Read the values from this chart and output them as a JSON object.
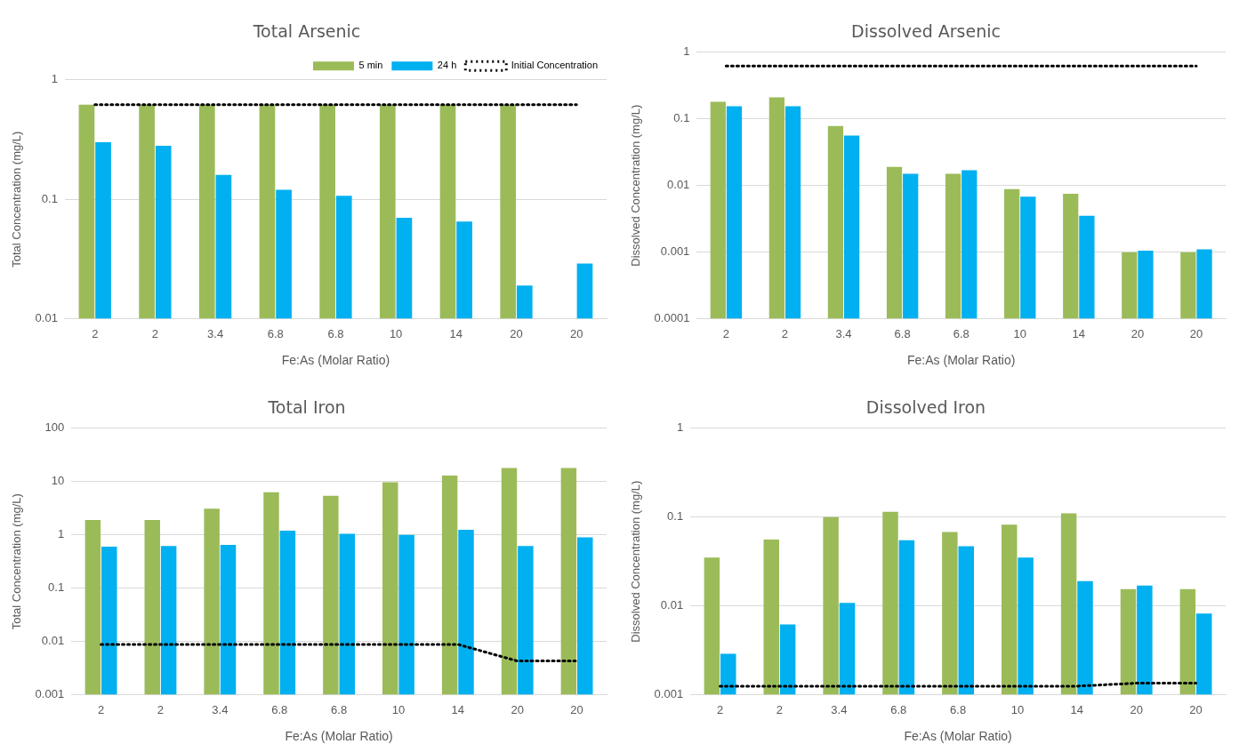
{
  "chart_data": [
    {
      "type": "bar",
      "title": "Total Arsenic",
      "xlabel": "Fe:As (Molar Ratio)",
      "ylabel": "Total Concentration (mg/L)",
      "categories": [
        "2",
        "2",
        "3.4",
        "6.8",
        "6.8",
        "10",
        "14",
        "20",
        "20"
      ],
      "log": "y",
      "ylim": [
        0.01,
        1
      ],
      "yticks": [
        0.01,
        0.1,
        1
      ],
      "grid": "y",
      "legend": "top right",
      "series": [
        {
          "name": "5 min",
          "color": "#9bbb59",
          "values": [
            0.62,
            0.62,
            0.62,
            0.62,
            0.62,
            0.62,
            0.62,
            0.62,
            null
          ]
        },
        {
          "name": "24 h",
          "color": "#00b0f0",
          "values": [
            0.3,
            0.28,
            0.16,
            0.12,
            0.107,
            0.07,
            0.065,
            0.019,
            0.029
          ]
        },
        {
          "name": "Initial Concentration",
          "type": "line",
          "color": "#000000",
          "line_style": "dotted",
          "values": [
            0.62,
            0.62,
            0.62,
            0.62,
            0.62,
            0.62,
            0.62,
            0.62,
            0.62
          ]
        }
      ]
    },
    {
      "type": "bar",
      "title": "Dissolved Arsenic",
      "xlabel": "Fe:As (Molar Ratio)",
      "ylabel": "Dissolved Concentration (mg/L)",
      "categories": [
        "2",
        "2",
        "3.4",
        "6.8",
        "6.8",
        "10",
        "14",
        "20",
        "20"
      ],
      "log": "y",
      "ylim": [
        0.0001,
        1
      ],
      "yticks": [
        0.0001,
        0.001,
        0.01,
        0.1,
        1
      ],
      "grid": "y",
      "series": [
        {
          "color": "#9bbb59",
          "values": [
            0.18,
            0.21,
            0.078,
            0.019,
            0.015,
            0.0088,
            0.0075,
            0.001,
            0.001
          ]
        },
        {
          "color": "#00b0f0",
          "values": [
            0.155,
            0.155,
            0.056,
            0.015,
            0.017,
            0.0068,
            0.0035,
            0.00105,
            0.0011
          ]
        },
        {
          "type": "line",
          "color": "#000000",
          "line_style": "dotted",
          "values": [
            0.62,
            0.62,
            0.62,
            0.62,
            0.62,
            0.62,
            0.62,
            0.62,
            0.62
          ]
        }
      ]
    },
    {
      "type": "bar",
      "title": "Total Iron",
      "xlabel": "Fe:As (Molar Ratio)",
      "ylabel": "Total Concentration (mg/L)",
      "categories": [
        "2",
        "2",
        "3.4",
        "6.8",
        "6.8",
        "10",
        "14",
        "20",
        "20"
      ],
      "log": "y",
      "ylim": [
        0.001,
        100
      ],
      "yticks": [
        0.001,
        0.01,
        0.1,
        1,
        10,
        100
      ],
      "grid": "y",
      "series": [
        {
          "color": "#9bbb59",
          "values": [
            1.9,
            1.9,
            3.1,
            6.3,
            5.4,
            9.7,
            13,
            18,
            18
          ]
        },
        {
          "color": "#00b0f0",
          "values": [
            0.6,
            0.62,
            0.65,
            1.2,
            1.05,
            1.0,
            1.25,
            0.62,
            0.9
          ]
        },
        {
          "type": "line",
          "color": "#000000",
          "line_style": "dotted",
          "values": [
            0.0088,
            0.0088,
            0.0088,
            0.0088,
            0.0088,
            0.0088,
            0.0088,
            0.0043,
            0.0043
          ]
        }
      ]
    },
    {
      "type": "bar",
      "title": "Dissolved Iron",
      "xlabel": "Fe:As (Molar Ratio)",
      "ylabel": "Dissolved Concentration (mg/L)",
      "categories": [
        "2",
        "2",
        "3.4",
        "6.8",
        "6.8",
        "10",
        "14",
        "20",
        "20"
      ],
      "log": "y",
      "ylim": [
        0.001,
        1
      ],
      "yticks": [
        0.001,
        0.01,
        0.1,
        1
      ],
      "grid": "y",
      "series": [
        {
          "color": "#9bbb59",
          "values": [
            0.035,
            0.056,
            0.1,
            0.115,
            0.068,
            0.082,
            0.11,
            0.0155,
            0.0155
          ]
        },
        {
          "color": "#00b0f0",
          "values": [
            0.0029,
            0.0062,
            0.0108,
            0.055,
            0.047,
            0.035,
            0.019,
            0.017,
            0.0082
          ]
        },
        {
          "type": "line",
          "color": "#000000",
          "line_style": "dotted",
          "values": [
            0.00125,
            0.00125,
            0.00125,
            0.00125,
            0.00125,
            0.00125,
            0.00125,
            0.00135,
            0.00135
          ]
        }
      ]
    }
  ]
}
